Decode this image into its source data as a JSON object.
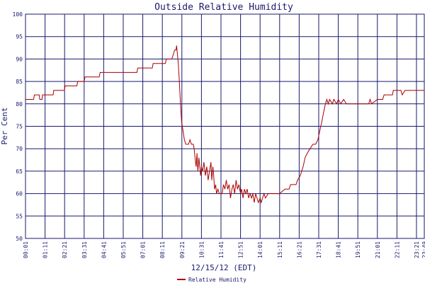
{
  "chart_data": {
    "type": "line",
    "title": "Outside Relative Humidity",
    "xlabel": "12/15/12 (EDT)",
    "ylabel": "Per Cent",
    "ylim": [
      50,
      100
    ],
    "yticks": [
      50,
      55,
      60,
      65,
      70,
      75,
      80,
      85,
      90,
      95,
      100
    ],
    "xlim": [
      "00:01",
      "23:49"
    ],
    "xticks": [
      "00:01",
      "01:11",
      "02:21",
      "03:31",
      "04:41",
      "05:51",
      "07:01",
      "08:11",
      "09:21",
      "10:31",
      "11:41",
      "12:51",
      "14:01",
      "15:11",
      "16:21",
      "17:31",
      "18:41",
      "19:51",
      "21:01",
      "22:11",
      "23:21",
      "23:49"
    ],
    "grid": true,
    "legend_position": "bottom",
    "series": [
      {
        "name": "Relative Humidity",
        "color": "#aa0000",
        "points": [
          [
            "00:01",
            81
          ],
          [
            "00:30",
            81
          ],
          [
            "00:33",
            82
          ],
          [
            "00:50",
            82
          ],
          [
            "00:52",
            81
          ],
          [
            "01:00",
            81
          ],
          [
            "01:02",
            82
          ],
          [
            "01:40",
            82
          ],
          [
            "01:42",
            83
          ],
          [
            "02:20",
            83
          ],
          [
            "02:23",
            84
          ],
          [
            "03:05",
            84
          ],
          [
            "03:08",
            85
          ],
          [
            "03:31",
            85
          ],
          [
            "03:34",
            86
          ],
          [
            "04:25",
            86
          ],
          [
            "04:28",
            87
          ],
          [
            "05:51",
            87
          ],
          [
            "06:40",
            87
          ],
          [
            "06:43",
            88
          ],
          [
            "07:35",
            88
          ],
          [
            "07:38",
            89
          ],
          [
            "08:22",
            89
          ],
          [
            "08:25",
            90
          ],
          [
            "08:45",
            90
          ],
          [
            "08:50",
            91
          ],
          [
            "08:55",
            92
          ],
          [
            "09:00",
            92
          ],
          [
            "09:02",
            93
          ],
          [
            "09:05",
            91
          ],
          [
            "09:08",
            89
          ],
          [
            "09:12",
            85
          ],
          [
            "09:16",
            80
          ],
          [
            "09:20",
            76
          ],
          [
            "09:25",
            74
          ],
          [
            "09:30",
            72
          ],
          [
            "09:35",
            71
          ],
          [
            "09:45",
            71
          ],
          [
            "09:50",
            72
          ],
          [
            "09:55",
            71
          ],
          [
            "10:02",
            71
          ],
          [
            "10:05",
            70
          ],
          [
            "10:08",
            68
          ],
          [
            "10:12",
            66
          ],
          [
            "10:15",
            69
          ],
          [
            "10:18",
            65
          ],
          [
            "10:22",
            68
          ],
          [
            "10:25",
            66
          ],
          [
            "10:28",
            64
          ],
          [
            "10:31",
            66
          ],
          [
            "10:35",
            65
          ],
          [
            "10:40",
            67
          ],
          [
            "10:45",
            64
          ],
          [
            "10:50",
            66
          ],
          [
            "10:55",
            63
          ],
          [
            "11:00",
            65
          ],
          [
            "11:05",
            67
          ],
          [
            "11:08",
            63
          ],
          [
            "11:12",
            66
          ],
          [
            "11:15",
            64
          ],
          [
            "11:18",
            61
          ],
          [
            "11:22",
            62
          ],
          [
            "11:25",
            60
          ],
          [
            "11:30",
            61
          ],
          [
            "11:35",
            60
          ],
          [
            "11:45",
            60
          ],
          [
            "11:50",
            62
          ],
          [
            "11:55",
            61
          ],
          [
            "12:00",
            63
          ],
          [
            "12:05",
            61
          ],
          [
            "12:10",
            62
          ],
          [
            "12:15",
            59
          ],
          [
            "12:20",
            61
          ],
          [
            "12:25",
            62
          ],
          [
            "12:30",
            60
          ],
          [
            "12:35",
            63
          ],
          [
            "12:40",
            61
          ],
          [
            "12:45",
            62
          ],
          [
            "12:51",
            60
          ],
          [
            "12:55",
            61
          ],
          [
            "13:00",
            59
          ],
          [
            "13:05",
            61
          ],
          [
            "13:10",
            60
          ],
          [
            "13:15",
            61
          ],
          [
            "13:20",
            59
          ],
          [
            "13:25",
            60
          ],
          [
            "13:30",
            59
          ],
          [
            "13:35",
            60
          ],
          [
            "13:40",
            58
          ],
          [
            "13:45",
            60
          ],
          [
            "13:50",
            59
          ],
          [
            "13:55",
            58
          ],
          [
            "14:01",
            59
          ],
          [
            "14:05",
            58
          ],
          [
            "14:10",
            59
          ],
          [
            "14:15",
            60
          ],
          [
            "14:20",
            59
          ],
          [
            "14:30",
            60
          ],
          [
            "14:45",
            60
          ],
          [
            "15:00",
            60
          ],
          [
            "15:11",
            60
          ],
          [
            "15:30",
            61
          ],
          [
            "15:45",
            61
          ],
          [
            "15:50",
            62
          ],
          [
            "16:10",
            62
          ],
          [
            "16:15",
            63
          ],
          [
            "16:25",
            64
          ],
          [
            "16:35",
            66
          ],
          [
            "16:42",
            68
          ],
          [
            "16:50",
            69
          ],
          [
            "17:00",
            70
          ],
          [
            "17:10",
            71
          ],
          [
            "17:20",
            71
          ],
          [
            "17:28",
            72
          ],
          [
            "17:35",
            74
          ],
          [
            "17:42",
            76
          ],
          [
            "17:48",
            78
          ],
          [
            "17:55",
            80
          ],
          [
            "18:00",
            81
          ],
          [
            "18:05",
            80
          ],
          [
            "18:10",
            81
          ],
          [
            "18:20",
            80
          ],
          [
            "18:25",
            81
          ],
          [
            "18:35",
            80
          ],
          [
            "18:41",
            81
          ],
          [
            "18:50",
            80
          ],
          [
            "19:00",
            81
          ],
          [
            "19:10",
            80
          ],
          [
            "19:51",
            80
          ],
          [
            "20:30",
            80
          ],
          [
            "20:35",
            81
          ],
          [
            "20:40",
            80
          ],
          [
            "21:01",
            81
          ],
          [
            "21:20",
            81
          ],
          [
            "21:25",
            82
          ],
          [
            "21:55",
            82
          ],
          [
            "21:58",
            83
          ],
          [
            "22:25",
            83
          ],
          [
            "22:30",
            82
          ],
          [
            "22:40",
            83
          ],
          [
            "23:49",
            83
          ]
        ]
      }
    ]
  }
}
